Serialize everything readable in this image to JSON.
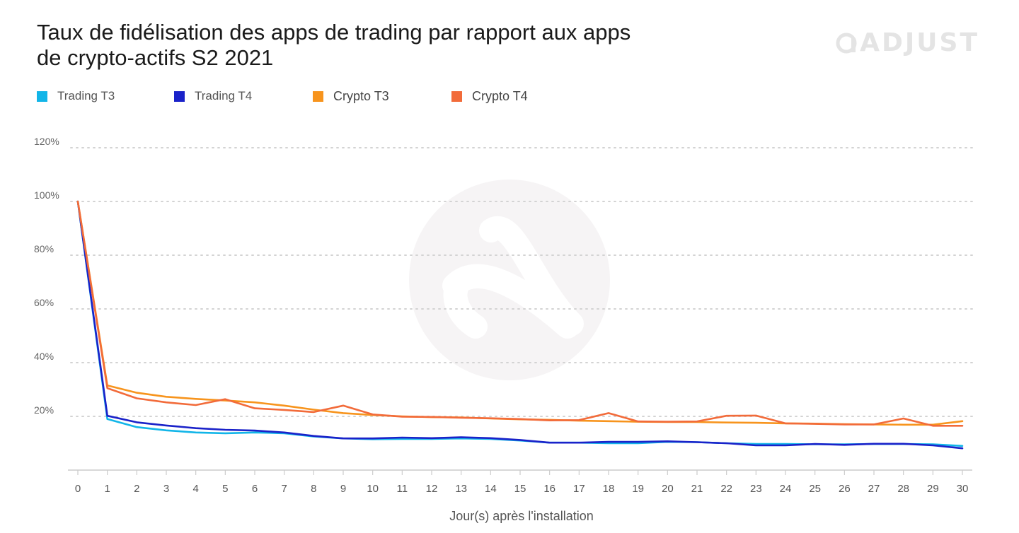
{
  "title": {
    "line1": "Taux de fidélisation des apps de trading par rapport aux apps",
    "line2": "de crypto-actifs S2 2021"
  },
  "brand": {
    "name": "ADJUST",
    "icon": "adjust-logo-icon"
  },
  "colors": {
    "trading_t3": "#12b5e8",
    "trading_t4": "#1a22c9",
    "crypto_t3": "#f7941d",
    "crypto_t4": "#f26b3a",
    "grid": "#d3d3d3",
    "axis": "#cccccc",
    "tick_label": "#666666"
  },
  "chart_data": {
    "type": "line",
    "title": "Taux de fidélisation des apps de trading par rapport aux apps de crypto-actifs S2 2021",
    "xlabel": "Jour(s) après l'installation",
    "ylabel": "",
    "x": [
      0,
      1,
      2,
      3,
      4,
      5,
      6,
      7,
      8,
      9,
      10,
      11,
      12,
      13,
      14,
      15,
      16,
      17,
      18,
      19,
      20,
      21,
      22,
      23,
      24,
      25,
      26,
      27,
      28,
      29,
      30
    ],
    "ylim": [
      0,
      120
    ],
    "y_ticks": [
      20,
      40,
      60,
      80,
      100,
      120
    ],
    "y_tick_labels": [
      "20%",
      "40%",
      "60%",
      "80%",
      "100%",
      "120%"
    ],
    "grid": true,
    "legend_position": "top-left",
    "series": [
      {
        "name": "Trading T3",
        "color": "#12b5e8",
        "values": [
          100,
          19,
          16,
          14.8,
          14,
          13.7,
          14,
          13.7,
          12.5,
          11.8,
          11.5,
          11.6,
          11.6,
          11.8,
          11.6,
          11,
          10.2,
          10.2,
          10,
          10,
          10.5,
          10.4,
          10,
          9.7,
          9.7,
          9.6,
          9.6,
          9.7,
          9.7,
          9.6,
          9
        ]
      },
      {
        "name": "Trading T4",
        "color": "#1a22c9",
        "values": [
          100,
          20.2,
          17.8,
          16.6,
          15.6,
          15,
          14.7,
          14,
          12.7,
          11.8,
          11.8,
          12.1,
          11.9,
          12.2,
          11.9,
          11.2,
          10.2,
          10.2,
          10.5,
          10.5,
          10.7,
          10.4,
          10,
          9.2,
          9.2,
          9.7,
          9.4,
          9.8,
          9.8,
          9.2,
          8.1
        ]
      },
      {
        "name": "Crypto T3",
        "color": "#f7941d",
        "values": [
          100,
          31.5,
          28.8,
          27.3,
          26.5,
          25.9,
          25.2,
          24,
          22.5,
          21.2,
          20.5,
          20,
          19.7,
          19.6,
          19.2,
          18.9,
          18.7,
          18.4,
          18.2,
          18,
          17.9,
          17.9,
          17.7,
          17.6,
          17.4,
          17.3,
          17.1,
          17,
          16.9,
          16.9,
          18.2
        ]
      },
      {
        "name": "Crypto T4",
        "color": "#f26b3a",
        "values": [
          100,
          30.5,
          26.7,
          25.2,
          24.2,
          26.4,
          23,
          22.4,
          21.6,
          24,
          20.7,
          19.9,
          19.8,
          19.5,
          19.3,
          19,
          18.5,
          18.6,
          21.2,
          18.1,
          18,
          18.1,
          20.2,
          20.3,
          17.4,
          17.2,
          17,
          17,
          19.2,
          16.5,
          16.5
        ]
      }
    ]
  }
}
